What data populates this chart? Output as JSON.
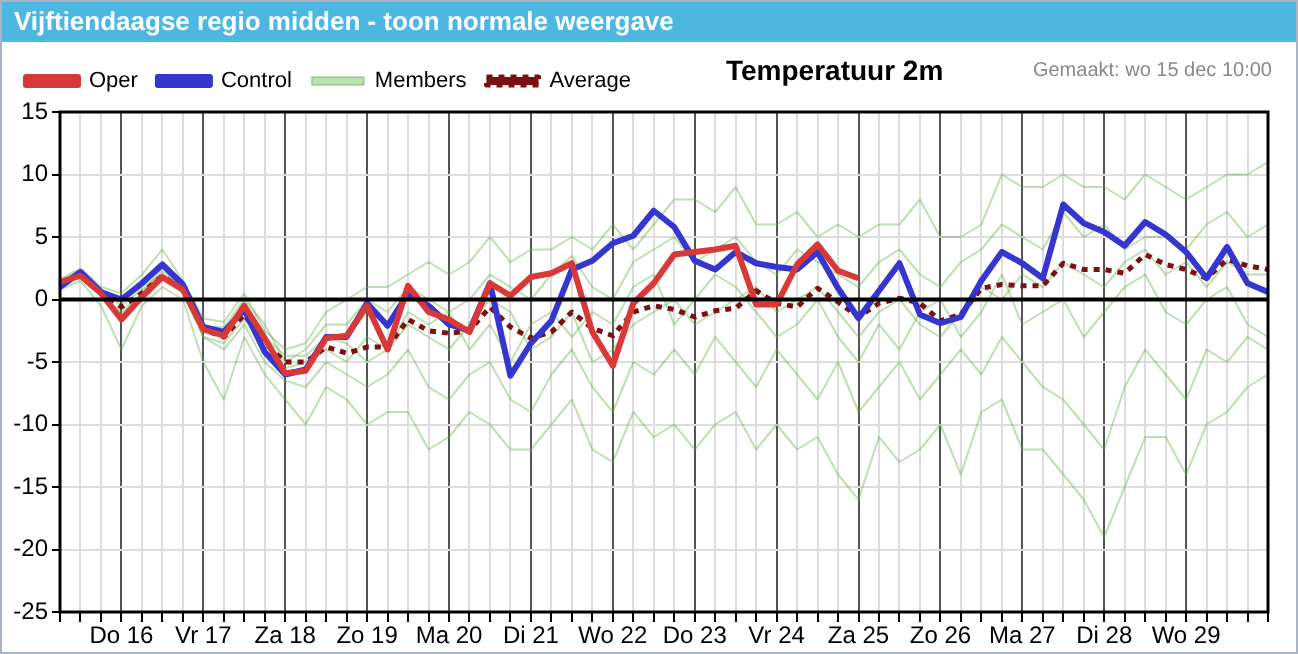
{
  "chart_data": {
    "type": "line",
    "title": "Vijftiendaagse regio midden - toon normale weergave",
    "subtitle": "Temperatuur 2m",
    "annotations": [
      "Gemaakt: wo 15 dec 10:00"
    ],
    "categories": [
      null,
      null,
      null,
      "Do 16",
      null,
      null,
      null,
      "Vr 17",
      null,
      null,
      null,
      "Za 18",
      null,
      null,
      null,
      "Zo 19",
      null,
      null,
      null,
      "Ma 20",
      null,
      null,
      null,
      "Di 21",
      null,
      null,
      null,
      "Wo 22",
      null,
      null,
      null,
      "Do 23",
      null,
      null,
      null,
      "Vr 24",
      null,
      null,
      null,
      "Za 25",
      null,
      null,
      null,
      "Zo 26",
      null,
      null,
      null,
      "Ma 27",
      null,
      null,
      null,
      "Di 28",
      null,
      null,
      null,
      "Wo 29",
      null,
      null,
      null,
      null
    ],
    "ylim": [
      -25,
      15
    ],
    "yticks": [
      -25,
      -20,
      -15,
      -10,
      -5,
      0,
      5,
      10,
      15
    ],
    "grid": true,
    "legend": "top left",
    "marker": "none",
    "ref_lines": [
      {
        "axis": "y",
        "value": 0,
        "color": "#000000"
      }
    ],
    "series": [
      {
        "name": "Oper",
        "color": "#d83838",
        "values": [
          1.4,
          1.9,
          0.5,
          -1.6,
          0.2,
          1.8,
          0.8,
          -2.4,
          -2.9,
          -0.5,
          -3.1,
          -5.9,
          -5.7,
          -3.1,
          -2.9,
          -0.5,
          -4.0,
          1.1,
          -1.0,
          -1.6,
          -2.6,
          1.3,
          0.3,
          1.8,
          2.1,
          2.9,
          -2.6,
          -5.3,
          -0.3,
          1.3,
          3.6,
          3.8,
          4.0,
          4.3,
          -0.4,
          -0.4,
          2.8,
          4.4,
          2.3,
          1.7,
          null,
          null,
          null,
          null,
          null,
          null,
          null,
          null,
          null,
          null,
          null,
          null,
          null,
          null,
          null,
          null,
          null,
          null,
          null,
          null
        ]
      },
      {
        "name": "Control",
        "color": "#3535d0",
        "values": [
          1.0,
          2.2,
          0.6,
          0.0,
          1.3,
          2.8,
          1.2,
          -2.2,
          -2.6,
          -0.8,
          -4.2,
          -6.0,
          -5.6,
          -3.0,
          -3.0,
          -0.3,
          -2.1,
          0.5,
          -0.5,
          -2.0,
          -2.5,
          1.3,
          -6.1,
          -3.5,
          -1.7,
          2.4,
          3.1,
          4.5,
          5.1,
          7.1,
          5.8,
          3.1,
          2.4,
          3.8,
          2.9,
          2.6,
          2.4,
          3.8,
          0.9,
          -1.5,
          0.7,
          2.9,
          -1.2,
          -1.9,
          -1.4,
          1.5,
          3.8,
          2.9,
          1.7,
          7.6,
          6.1,
          5.4,
          4.3,
          6.2,
          5.2,
          3.8,
          1.7,
          4.2,
          1.3,
          0.6
        ]
      },
      {
        "name": "Members",
        "color": "#5cb040",
        "values": [
          1.6,
          2.5,
          1.0,
          0.5,
          2,
          4,
          1.5,
          -1.5,
          -1.8,
          0.5,
          -2.5,
          -4,
          -3.5,
          -1,
          0,
          1,
          1,
          2,
          3,
          2,
          3,
          5,
          3,
          4,
          4,
          5,
          4,
          6,
          4,
          6,
          8,
          8,
          7,
          9,
          6,
          6,
          7,
          5,
          6,
          5,
          6,
          6,
          8,
          5,
          5,
          6,
          10,
          9,
          9,
          10,
          9,
          9,
          8,
          10,
          9,
          8,
          9,
          10,
          10,
          11
        ]
      },
      {
        "color": "#5cb040",
        "values": [
          0.8,
          1.5,
          -0.5,
          -4,
          -0.5,
          1,
          0,
          -5,
          -8,
          -3,
          -6,
          -8,
          -10,
          -7,
          -8,
          -10,
          -9,
          -9,
          -12,
          -11,
          -9,
          -10,
          -12,
          -12,
          -10,
          -8,
          -12,
          -13,
          -9,
          -11,
          -10,
          -12,
          -10,
          -9,
          -12,
          -10,
          -12,
          -11,
          -14,
          -16,
          -11,
          -13,
          -12,
          -10,
          -14,
          -9,
          -8,
          -12,
          -12,
          -14,
          -16,
          -19,
          -15,
          -11,
          -11,
          -14,
          -10,
          -9,
          -7,
          -6
        ]
      },
      {
        "color": "#5cb040",
        "values": [
          1.2,
          2.0,
          0.3,
          -1,
          0.5,
          2.5,
          1,
          -3,
          -3.5,
          -1.5,
          -4,
          -5.5,
          -5,
          -4,
          -5,
          -3,
          -4,
          -2,
          -3,
          -4,
          -2,
          0,
          -1,
          -4,
          -3,
          -1,
          -5,
          -4,
          -2,
          -1,
          0,
          -2,
          -1,
          0,
          1,
          -1,
          0,
          1,
          -1,
          -3,
          -1,
          0,
          -2,
          -3,
          -1,
          1,
          0,
          2,
          1,
          3,
          2,
          1,
          3,
          4,
          2,
          3,
          1,
          3,
          2,
          2
        ]
      },
      {
        "color": "#5cb040",
        "values": [
          1.4,
          2.2,
          0.6,
          -0.2,
          1,
          2,
          0.6,
          -2,
          -2.8,
          -0.8,
          -3,
          -4.5,
          -4.5,
          -3,
          -3.5,
          -5,
          -4,
          -1,
          -2,
          -1,
          -4,
          -2,
          -5,
          -2,
          -1,
          -3,
          -1,
          -2,
          1,
          2,
          -2,
          0,
          2,
          1,
          -1,
          -3,
          -2,
          0,
          -3,
          -5,
          -2,
          -4,
          -1,
          0,
          -3,
          -1,
          2,
          -2,
          -1,
          0,
          -3,
          -1,
          1,
          2,
          -1,
          -2,
          0,
          1,
          -2,
          -3
        ]
      },
      {
        "color": "#5cb040",
        "values": [
          1.0,
          2.1,
          0.8,
          -0.5,
          0.8,
          1.5,
          0.5,
          -3,
          -4,
          -2,
          -5,
          -6.5,
          -7,
          -5,
          -6,
          -7,
          -6,
          -4,
          -7,
          -8,
          -6,
          -5,
          -8,
          -9,
          -6,
          -4,
          -7,
          -9,
          -5,
          -6,
          -4,
          -6,
          -3,
          -5,
          -7,
          -4,
          -6,
          -8,
          -5,
          -9,
          -7,
          -5,
          -8,
          -6,
          -4,
          -6,
          -3,
          -5,
          -7,
          -8,
          -10,
          -12,
          -7,
          -4,
          -6,
          -8,
          -4,
          -5,
          -3,
          -4
        ]
      },
      {
        "color": "#5cb040",
        "values": [
          1.5,
          2.3,
          0.4,
          -1.2,
          0.3,
          2.2,
          1.2,
          -2.2,
          -2.2,
          0,
          -2,
          -5,
          -4,
          -2,
          -2,
          0,
          -1,
          1,
          0,
          -1,
          0,
          2,
          1,
          0,
          2,
          3.5,
          1,
          0,
          3,
          4,
          5,
          3,
          4,
          5,
          3,
          2,
          4,
          3,
          2,
          1,
          3,
          4,
          2,
          1,
          3,
          4,
          6,
          5,
          4,
          7,
          5,
          6,
          4,
          5,
          5,
          4,
          6,
          7,
          5,
          6
        ]
      },
      {
        "name": "Average",
        "color": "#7a1010",
        "line_style": "dotted",
        "values": [
          1.2,
          2.0,
          0.5,
          -0.6,
          0.5,
          1.9,
          0.8,
          -2.4,
          -3.0,
          -1.2,
          -3.5,
          -5.0,
          -5.0,
          -3.8,
          -4.3,
          -3.8,
          -3.8,
          -1.6,
          -2.5,
          -2.7,
          -2.5,
          -0.6,
          -2.2,
          -3.1,
          -2.6,
          -1.0,
          -2.3,
          -2.9,
          -1.0,
          -0.5,
          -0.8,
          -1.4,
          -0.9,
          -0.7,
          0.7,
          -0.3,
          -0.6,
          0.9,
          -0.2,
          -1.4,
          -0.3,
          0.1,
          -0.3,
          -1.7,
          -1.2,
          0.9,
          1.2,
          1.1,
          1.1,
          2.9,
          2.4,
          2.4,
          2.1,
          3.6,
          2.8,
          2.4,
          1.7,
          3.2,
          2.7,
          2.4
        ]
      }
    ]
  }
}
